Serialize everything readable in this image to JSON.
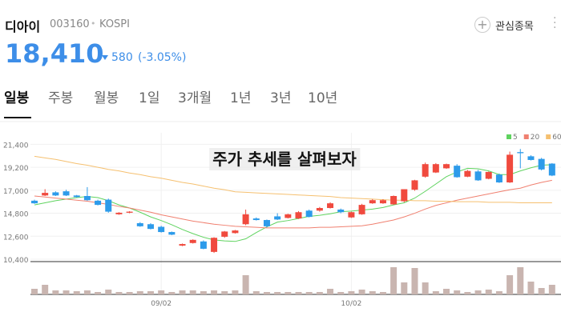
{
  "header": {
    "name": "디아이",
    "code": "003160",
    "separator": "•",
    "market": "KOSPI",
    "watch_button": "관심종목"
  },
  "quote": {
    "price": "18,410",
    "change": "580",
    "change_percent": "(-3.05%)"
  },
  "tabs": [
    "일봉",
    "주봉",
    "월봉",
    "1일",
    "3개월",
    "1년",
    "3년",
    "10년"
  ],
  "selected_tab": 0,
  "chart_data": {
    "type": "candlestick",
    "overlay_text": "주가 추세를 살펴보자",
    "categories": [
      null,
      null,
      null,
      null,
      null,
      null,
      null,
      null,
      null,
      null,
      null,
      null,
      "09/02",
      null,
      null,
      null,
      null,
      null,
      null,
      null,
      null,
      null,
      null,
      null,
      null,
      null,
      null,
      null,
      null,
      null,
      "10/02",
      null,
      null,
      null,
      null,
      null,
      null,
      null,
      null,
      null,
      null,
      null,
      null,
      null,
      null,
      null,
      null,
      null,
      null,
      null
    ],
    "open": [
      16000,
      16500,
      16800,
      16900,
      16500,
      16450,
      16000,
      16100,
      14700,
      14850,
      13850,
      13750,
      13500,
      13000,
      11700,
      11950,
      12100,
      11100,
      12550,
      12900,
      13750,
      14300,
      14150,
      14500,
      14350,
      14300,
      15050,
      15050,
      15300,
      15150,
      14400,
      14700,
      15750,
      15750,
      15650,
      15950,
      17050,
      18300,
      18700,
      19100,
      19350,
      18300,
      18800,
      18100,
      18500,
      17750,
      20650,
      20250,
      20000,
      19550
    ],
    "high": [
      16100,
      17100,
      16900,
      17050,
      16550,
      17300,
      16100,
      16200,
      14900,
      15000,
      13950,
      13850,
      13600,
      13050,
      11900,
      12300,
      12200,
      12500,
      13100,
      13200,
      15150,
      14400,
      14200,
      14800,
      14750,
      15000,
      15150,
      15400,
      15850,
      15250,
      14950,
      15700,
      16150,
      16150,
      16500,
      17100,
      18000,
      19650,
      19600,
      19550,
      19500,
      18950,
      18950,
      18800,
      18600,
      20700,
      20950,
      20350,
      20100,
      19600
    ],
    "low": [
      15700,
      16450,
      16450,
      16450,
      16300,
      16000,
      15550,
      14850,
      14650,
      14800,
      13500,
      13250,
      12950,
      12700,
      11650,
      11900,
      11350,
      11000,
      12450,
      12850,
      13650,
      14100,
      13450,
      14150,
      14300,
      14250,
      14400,
      14950,
      15250,
      14800,
      14350,
      14650,
      15700,
      15700,
      15600,
      15850,
      16950,
      18200,
      18650,
      19050,
      18200,
      18250,
      17900,
      18050,
      17700,
      17700,
      19100,
      19850,
      18900,
      18350
    ],
    "close": [
      15750,
      16750,
      16500,
      16500,
      16350,
      16050,
      15600,
      14950,
      14850,
      14950,
      13550,
      13300,
      13000,
      12750,
      11850,
      12250,
      11400,
      12450,
      13050,
      13150,
      14700,
      14150,
      13550,
      14200,
      14700,
      14900,
      14450,
      15300,
      15750,
      14900,
      14900,
      15600,
      16050,
      16050,
      16450,
      17100,
      17950,
      19500,
      19500,
      19500,
      18250,
      18850,
      17950,
      18750,
      17750,
      20400,
      20550,
      19900,
      18990,
      18410
    ],
    "up_color": "#f04a3e",
    "down_color": "#2d9bea",
    "series": [
      {
        "name": "5",
        "color": "#5fd35f",
        "values": [
          15600,
          15800,
          16000,
          16150,
          16300,
          16400,
          16300,
          16000,
          15600,
          15300,
          14900,
          14450,
          14100,
          13700,
          13250,
          12850,
          12500,
          12250,
          12150,
          12100,
          12350,
          12950,
          13500,
          13950,
          14100,
          14300,
          14500,
          14600,
          14750,
          14950,
          15000,
          15100,
          15200,
          15350,
          15600,
          15800,
          16250,
          16900,
          17600,
          18300,
          18750,
          19100,
          19050,
          18850,
          18500,
          18500,
          18850,
          19150,
          19400,
          19450
        ]
      },
      {
        "name": "20",
        "color": "#f08070",
        "values": [
          16450,
          16350,
          16250,
          16150,
          16050,
          15950,
          15800,
          15650,
          15450,
          15300,
          15100,
          14900,
          14650,
          14450,
          14250,
          14050,
          13900,
          13750,
          13650,
          13550,
          13500,
          13450,
          13400,
          13400,
          13400,
          13400,
          13400,
          13450,
          13450,
          13500,
          13550,
          13600,
          13750,
          13950,
          14150,
          14450,
          14800,
          15200,
          15550,
          15800,
          16050,
          16250,
          16450,
          16650,
          16850,
          17050,
          17200,
          17500,
          17750,
          17950
        ]
      },
      {
        "name": "60",
        "color": "#f5c070",
        "values": [
          20250,
          20100,
          19950,
          19750,
          19550,
          19400,
          19200,
          19000,
          18850,
          18650,
          18500,
          18300,
          18150,
          17950,
          17750,
          17600,
          17400,
          17200,
          17050,
          16850,
          16800,
          16750,
          16700,
          16650,
          16600,
          16550,
          16500,
          16450,
          16400,
          16300,
          16250,
          16200,
          16150,
          16100,
          16050,
          16050,
          16000,
          16000,
          15950,
          15950,
          15900,
          15900,
          15900,
          15850,
          15850,
          15850,
          15800,
          15800,
          15800,
          15800
        ]
      }
    ],
    "volume": [
      7,
      12,
      5,
      5,
      4,
      5,
      3,
      6,
      3,
      3,
      4,
      4,
      5,
      3,
      5,
      5,
      4,
      5,
      4,
      5,
      24,
      4,
      3,
      3,
      3,
      3,
      3,
      3,
      7,
      3,
      4,
      6,
      4,
      3,
      34,
      15,
      33,
      15,
      4,
      7,
      5,
      3,
      5,
      6,
      4,
      24,
      34,
      16,
      8,
      12
    ],
    "volume_color": "#c9b5b0",
    "volume_ylim": [
      0,
      40
    ],
    "ylim": [
      10400,
      22500
    ],
    "yticks": [
      {
        "value": 10400,
        "label": "10,400"
      },
      {
        "value": 12600,
        "label": "12,600"
      },
      {
        "value": 14800,
        "label": "14,800"
      },
      {
        "value": 17000,
        "label": "17,000"
      },
      {
        "value": 19200,
        "label": "19,200"
      },
      {
        "value": 21400,
        "label": "21,400"
      }
    ],
    "grid": true
  }
}
